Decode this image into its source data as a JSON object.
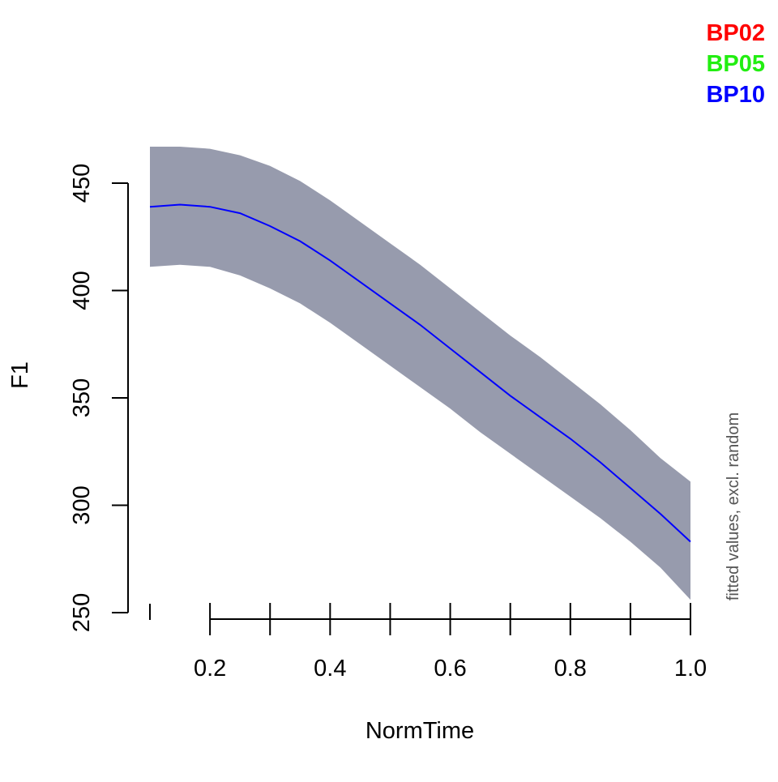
{
  "chart_data": {
    "type": "line",
    "title": "",
    "xlabel": "NormTime",
    "ylabel": "F1",
    "side_note": "fitted values, excl. random",
    "xlim": [
      0.1,
      1.0
    ],
    "ylim": [
      250,
      450
    ],
    "x_ticks": [
      0.1,
      0.2,
      0.3,
      0.4,
      0.5,
      0.6,
      0.7,
      0.8,
      0.9,
      1.0
    ],
    "x_tick_labels": [
      {
        "value": 0.2,
        "label": "0.2"
      },
      {
        "value": 0.4,
        "label": "0.4"
      },
      {
        "value": 0.6,
        "label": "0.6"
      },
      {
        "value": 0.8,
        "label": "0.8"
      },
      {
        "value": 1.0,
        "label": "1.0"
      }
    ],
    "y_ticks": [
      {
        "value": 250,
        "label": "250"
      },
      {
        "value": 300,
        "label": "300"
      },
      {
        "value": 350,
        "label": "350"
      },
      {
        "value": 400,
        "label": "400"
      },
      {
        "value": 450,
        "label": "450"
      }
    ],
    "grid": false,
    "legend": {
      "position": "top-right",
      "entries": [
        {
          "label": "BP02",
          "color": "#ff0000"
        },
        {
          "label": "BP05",
          "color": "#22ee11"
        },
        {
          "label": "BP10",
          "color": "#0000ff"
        }
      ]
    },
    "band_color": "#979bad",
    "series": [
      {
        "color": "#0000ff",
        "x": [
          0.1,
          0.15,
          0.2,
          0.25,
          0.3,
          0.35,
          0.4,
          0.45,
          0.5,
          0.55,
          0.6,
          0.65,
          0.7,
          0.75,
          0.8,
          0.85,
          0.9,
          0.95,
          1.0
        ],
        "y": [
          439,
          440,
          439,
          436,
          430,
          423,
          414,
          404,
          394,
          384,
          373,
          362,
          351,
          341,
          331,
          320,
          308,
          296,
          283
        ],
        "lower": [
          411,
          412,
          411,
          407,
          401,
          394,
          385,
          375,
          365,
          355,
          345,
          334,
          324,
          314,
          304,
          294,
          283,
          271,
          256
        ],
        "upper": [
          467,
          467,
          466,
          463,
          458,
          451,
          442,
          432,
          422,
          412,
          401,
          390,
          379,
          369,
          358,
          347,
          335,
          322,
          311
        ]
      }
    ]
  }
}
